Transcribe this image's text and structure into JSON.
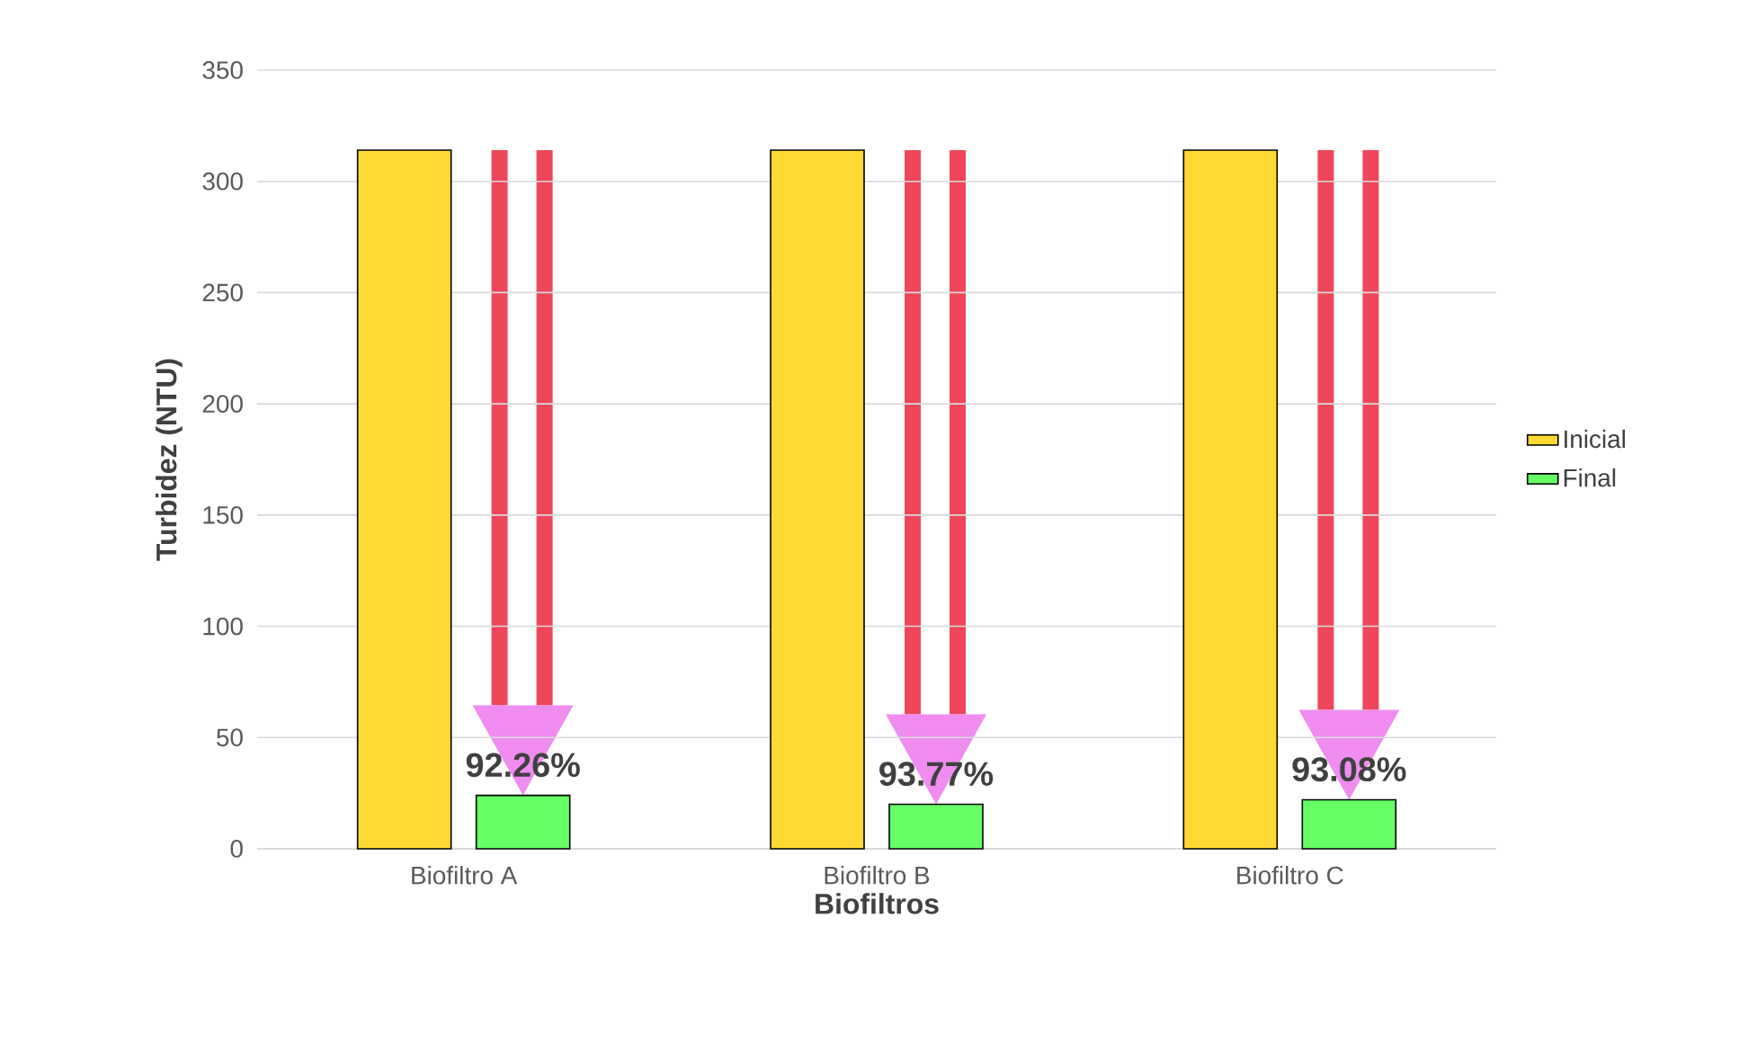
{
  "chart_data": {
    "type": "bar",
    "xlabel": "Biofiltros",
    "ylabel": "Turbidez (NTU)",
    "categories": [
      "Biofiltro A",
      "Biofiltro B",
      "Biofiltro C"
    ],
    "series": [
      {
        "name": "Inicial",
        "color": "#ffd933",
        "values": [
          314,
          314,
          314
        ]
      },
      {
        "name": "Final",
        "color": "#66ff66",
        "values": [
          24,
          20,
          22
        ]
      }
    ],
    "ylim": [
      0,
      350
    ],
    "yticks": [
      0,
      50,
      100,
      150,
      200,
      250,
      300,
      350
    ],
    "grid": "y",
    "legend": "right",
    "annotations": [
      "92.26%",
      "93.77%",
      "93.08%"
    ]
  }
}
